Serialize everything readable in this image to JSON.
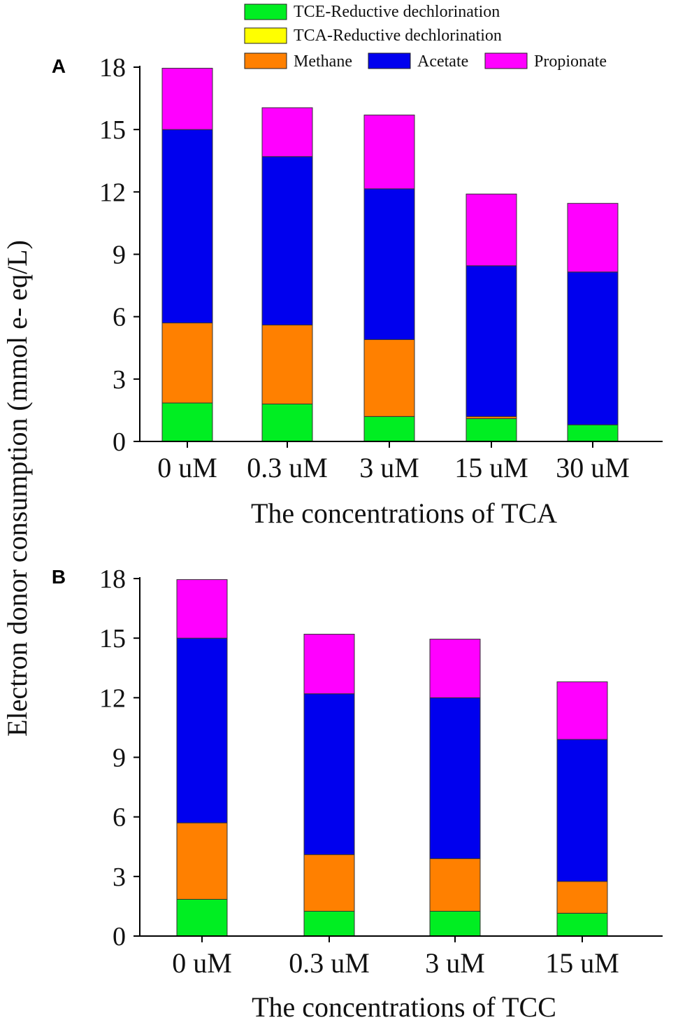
{
  "figure": {
    "ylabel": "Electron donor consumption (mmol e- eq/L)"
  },
  "legend": {
    "entries": [
      {
        "name": "TCE-Reductive dechlorination",
        "color": "#00ee22"
      },
      {
        "name": "TCA-Reductive dechlorination",
        "color": "#ffff00"
      },
      {
        "name": "Methane",
        "color": "#ff8000"
      },
      {
        "name": "Acetate",
        "color": "#0000ee"
      },
      {
        "name": "Propionate",
        "color": "#ff00ff"
      }
    ]
  },
  "chart_data": [
    {
      "type": "bar",
      "stacked": true,
      "panel_label": "A",
      "title": "",
      "xlabel": "The concentrations of TCA",
      "ylabel": "Electron donor consumption (mmol e- eq/L)",
      "ylim": [
        0,
        18
      ],
      "yticks": [
        0,
        3,
        6,
        9,
        12,
        15,
        18
      ],
      "categories": [
        "0 uM",
        "0.3 uM",
        "3 uM",
        "15 uM",
        "30 uM"
      ],
      "series": [
        {
          "name": "TCE-Reductive dechlorination",
          "color": "#00ee22",
          "values": [
            1.85,
            1.8,
            1.2,
            1.1,
            0.8
          ]
        },
        {
          "name": "TCA-Reductive dechlorination",
          "color": "#ffff00",
          "values": [
            0,
            0,
            0,
            0,
            0
          ]
        },
        {
          "name": "Methane",
          "color": "#ff8000",
          "values": [
            3.85,
            3.8,
            3.7,
            0.1,
            0
          ]
        },
        {
          "name": "Acetate",
          "color": "#0000ee",
          "values": [
            9.3,
            8.1,
            7.25,
            7.25,
            7.35
          ]
        },
        {
          "name": "Propionate",
          "color": "#ff00ff",
          "values": [
            2.95,
            2.35,
            3.55,
            3.45,
            3.3
          ]
        }
      ]
    },
    {
      "type": "bar",
      "stacked": true,
      "panel_label": "B",
      "title": "",
      "xlabel": "The concentrations of TCC",
      "ylabel": "Electron donor consumption (mmol e- eq/L)",
      "ylim": [
        0,
        18
      ],
      "yticks": [
        0,
        3,
        6,
        9,
        12,
        15,
        18
      ],
      "categories": [
        "0 uM",
        "0.3 uM",
        "3 uM",
        "15 uM"
      ],
      "series": [
        {
          "name": "TCE-Reductive dechlorination",
          "color": "#00ee22",
          "values": [
            1.85,
            1.25,
            1.25,
            1.15
          ]
        },
        {
          "name": "TCA-Reductive dechlorination",
          "color": "#ffff00",
          "values": [
            0,
            0,
            0,
            0
          ]
        },
        {
          "name": "Methane",
          "color": "#ff8000",
          "values": [
            3.85,
            2.85,
            2.65,
            1.6
          ]
        },
        {
          "name": "Acetate",
          "color": "#0000ee",
          "values": [
            9.3,
            8.1,
            8.1,
            7.15
          ]
        },
        {
          "name": "Propionate",
          "color": "#ff00ff",
          "values": [
            2.95,
            3.0,
            2.95,
            2.9
          ]
        }
      ]
    }
  ]
}
